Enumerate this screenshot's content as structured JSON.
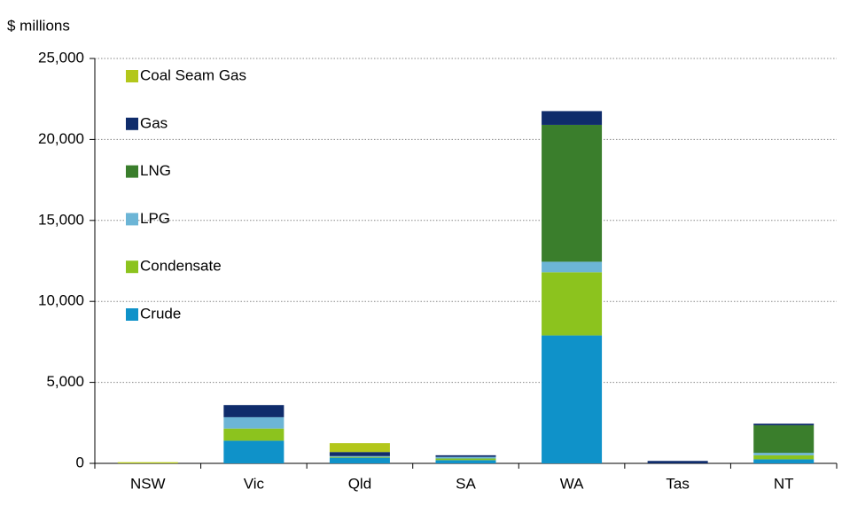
{
  "chart_data": {
    "type": "stacked_bar",
    "y_label": "$ millions",
    "categories": [
      "NSW",
      "Vic",
      "Qld",
      "SA",
      "WA",
      "Tas",
      "NT"
    ],
    "series": [
      {
        "name": "Crude",
        "color": "#0f92c9",
        "values": [
          0,
          1400,
          350,
          200,
          7900,
          0,
          250
        ]
      },
      {
        "name": "Condensate",
        "color": "#8cc31e",
        "values": [
          0,
          750,
          50,
          100,
          3900,
          0,
          250
        ]
      },
      {
        "name": "LPG",
        "color": "#6cb5d6",
        "values": [
          0,
          700,
          50,
          100,
          650,
          0,
          150
        ]
      },
      {
        "name": "LNG",
        "color": "#3a7e2c",
        "values": [
          0,
          0,
          0,
          0,
          8450,
          0,
          1700
        ]
      },
      {
        "name": "Gas",
        "color": "#0f2c6b",
        "values": [
          0,
          750,
          250,
          100,
          850,
          150,
          100
        ]
      },
      {
        "name": "Coal Seam Gas",
        "color": "#b3c71b",
        "values": [
          70,
          0,
          550,
          0,
          0,
          0,
          0
        ]
      }
    ],
    "ylim": [
      0,
      25000
    ],
    "yticks": [
      0,
      {
        "value": 5000,
        "label": "5,000"
      },
      {
        "value": 10000,
        "label": "10,000"
      },
      {
        "value": 15000,
        "label": "15,000"
      },
      {
        "value": 20000,
        "label": "20,000"
      },
      {
        "value": 25000,
        "label": "25,000"
      }
    ],
    "grid": true,
    "legend": "upper left"
  }
}
